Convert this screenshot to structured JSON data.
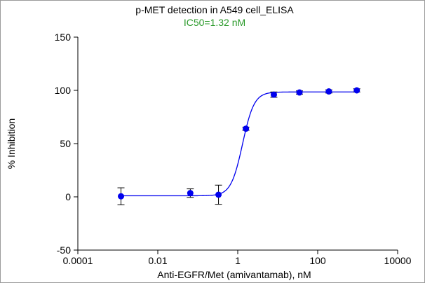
{
  "chart_data": {
    "type": "scatter",
    "title": "p-MET  detection in  A549  cell_ELISA",
    "subtitle": "IC50=1.32  nM",
    "xlabel": "Anti-EGFR/Met  (amivantamab), nM",
    "ylabel": "%  Inhibition",
    "x_scale": "log",
    "xlim": [
      0.0001,
      10000
    ],
    "ylim": [
      -50,
      150
    ],
    "x_ticks": [
      {
        "value": 0.0001,
        "label": "0.0001"
      },
      {
        "value": 0.01,
        "label": "0.01"
      },
      {
        "value": 1,
        "label": "1"
      },
      {
        "value": 100,
        "label": "100"
      },
      {
        "value": 10000,
        "label": "10000"
      }
    ],
    "y_ticks": [
      {
        "value": -50,
        "label": "-50"
      },
      {
        "value": 0,
        "label": "0"
      },
      {
        "value": 50,
        "label": "50"
      },
      {
        "value": 100,
        "label": "100"
      },
      {
        "value": 150,
        "label": "150"
      }
    ],
    "grid": false,
    "series": [
      {
        "color": "#0000ee",
        "points": [
          {
            "x": 0.0012,
            "y": 0.5,
            "err": 8
          },
          {
            "x": 0.065,
            "y": 3.5,
            "err": 4
          },
          {
            "x": 0.33,
            "y": 2.0,
            "err": 9
          },
          {
            "x": 1.6,
            "y": 64,
            "err": 1.5
          },
          {
            "x": 8,
            "y": 96,
            "err": 2.5
          },
          {
            "x": 35,
            "y": 98,
            "err": 1.5
          },
          {
            "x": 190,
            "y": 99,
            "err": 1.5
          },
          {
            "x": 950,
            "y": 100,
            "err": 1.5
          }
        ]
      }
    ],
    "fit": {
      "model": "4PL",
      "bottom": 1,
      "top": 98.5,
      "ic50": 1.32,
      "hill": 3.0,
      "x_range": [
        0.0012,
        950
      ]
    },
    "colors": {
      "title": "#000000",
      "subtitle": "#2a9a2a",
      "series": "#0000ee",
      "axis": "#000000"
    }
  }
}
